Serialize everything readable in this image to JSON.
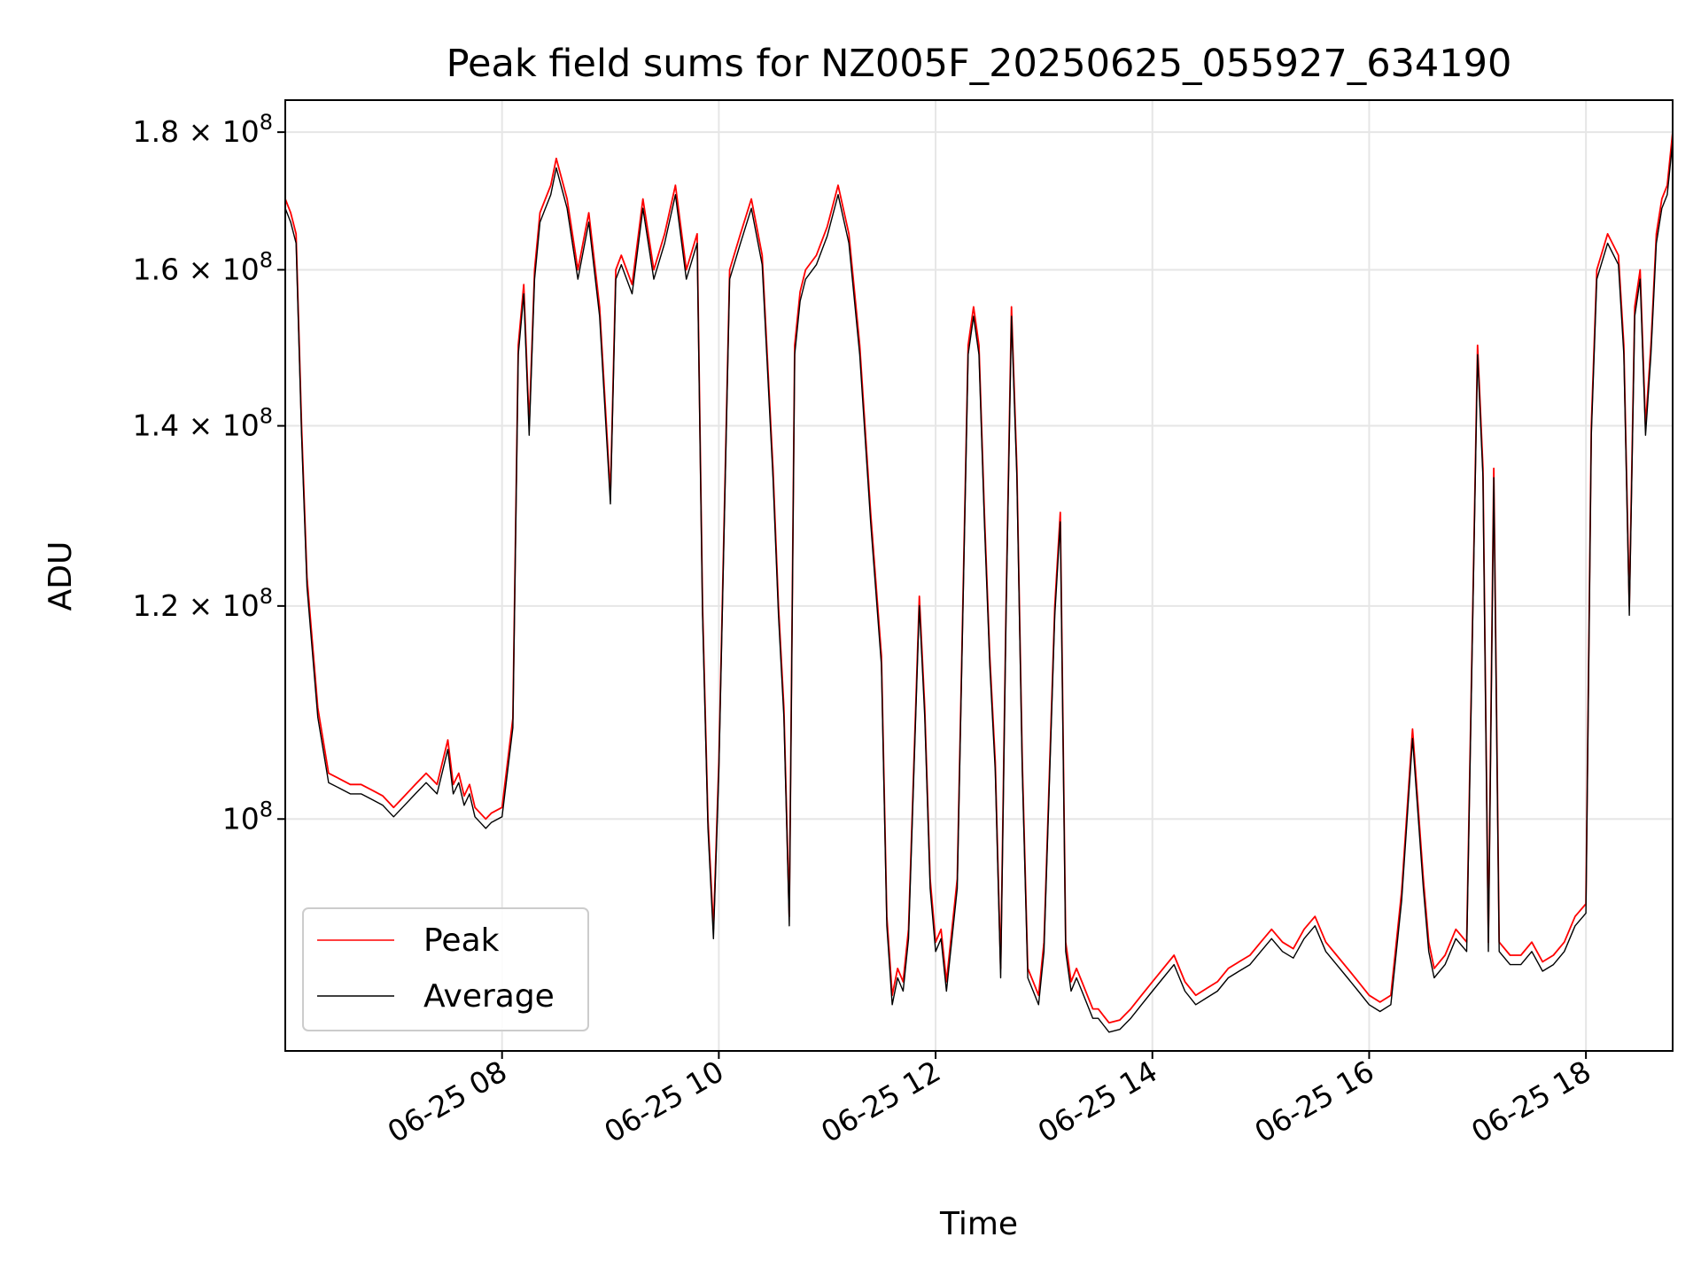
{
  "chart_data": {
    "type": "line",
    "title": "Peak field sums for NZ005F_20250625_055927_634190",
    "xlabel": "Time",
    "ylabel": "ADU",
    "y_scale": "log",
    "ylim": [
      82000000,
      185000000
    ],
    "xlim": [
      "06-25 06:00",
      "06-25 18:48"
    ],
    "grid": true,
    "legend_position": "lower left",
    "x_ticks": [
      "06-25 08",
      "06-25 10",
      "06-25 12",
      "06-25 14",
      "06-25 16",
      "06-25 18"
    ],
    "x_tick_hours": [
      8,
      10,
      12,
      14,
      16,
      18
    ],
    "y_ticks": [
      {
        "value": 100000000,
        "mantissa": "",
        "exp": "8"
      },
      {
        "value": 120000000,
        "mantissa": "1.2",
        "exp": "8"
      },
      {
        "value": 140000000,
        "mantissa": "1.4",
        "exp": "8"
      },
      {
        "value": 160000000,
        "mantissa": "1.6",
        "exp": "8"
      },
      {
        "value": 180000000,
        "mantissa": "1.8",
        "exp": "8"
      }
    ],
    "series": [
      {
        "name": "Peak",
        "color": "#ff0000"
      },
      {
        "name": "Average",
        "color": "#000000"
      }
    ],
    "x_hours": [
      6.0,
      6.05,
      6.1,
      6.15,
      6.2,
      6.3,
      6.4,
      6.5,
      6.6,
      6.7,
      6.8,
      6.9,
      7.0,
      7.1,
      7.2,
      7.3,
      7.4,
      7.5,
      7.55,
      7.6,
      7.65,
      7.7,
      7.75,
      7.8,
      7.85,
      7.9,
      8.0,
      8.1,
      8.15,
      8.2,
      8.25,
      8.3,
      8.35,
      8.4,
      8.45,
      8.5,
      8.6,
      8.7,
      8.8,
      8.9,
      9.0,
      9.05,
      9.1,
      9.2,
      9.3,
      9.4,
      9.5,
      9.6,
      9.7,
      9.8,
      9.85,
      9.9,
      9.95,
      10.0,
      10.1,
      10.2,
      10.3,
      10.4,
      10.5,
      10.55,
      10.6,
      10.65,
      10.7,
      10.75,
      10.8,
      10.9,
      11.0,
      11.1,
      11.2,
      11.3,
      11.4,
      11.5,
      11.55,
      11.6,
      11.65,
      11.7,
      11.75,
      11.8,
      11.85,
      11.9,
      11.95,
      12.0,
      12.05,
      12.1,
      12.2,
      12.3,
      12.35,
      12.4,
      12.45,
      12.5,
      12.55,
      12.6,
      12.65,
      12.7,
      12.75,
      12.8,
      12.85,
      12.9,
      12.95,
      13.0,
      13.1,
      13.15,
      13.2,
      13.25,
      13.3,
      13.35,
      13.4,
      13.45,
      13.5,
      13.55,
      13.6,
      13.7,
      13.8,
      13.9,
      14.0,
      14.1,
      14.2,
      14.3,
      14.4,
      14.5,
      14.6,
      14.7,
      14.8,
      14.9,
      15.0,
      15.1,
      15.2,
      15.3,
      15.4,
      15.5,
      15.6,
      15.7,
      15.8,
      15.9,
      16.0,
      16.1,
      16.2,
      16.3,
      16.4,
      16.5,
      16.55,
      16.6,
      16.7,
      16.8,
      16.9,
      17.0,
      17.05,
      17.1,
      17.15,
      17.2,
      17.3,
      17.4,
      17.5,
      17.6,
      17.7,
      17.8,
      17.9,
      18.0,
      18.05,
      18.1,
      18.2,
      18.3,
      18.35,
      18.4,
      18.45,
      18.5,
      18.55,
      18.6,
      18.65,
      18.7,
      18.75,
      18.8
    ],
    "peak": [
      170000000,
      168000000,
      165000000,
      140000000,
      123000000,
      110000000,
      104000000,
      103500000,
      103000000,
      103000000,
      102500000,
      102000000,
      101000000,
      102000000,
      103000000,
      104000000,
      103000000,
      107000000,
      103000000,
      104000000,
      102000000,
      103000000,
      101000000,
      100500000,
      100000000,
      100500000,
      101000000,
      109000000,
      150000000,
      158000000,
      140000000,
      160000000,
      168000000,
      170000000,
      172000000,
      176000000,
      170000000,
      160000000,
      168000000,
      155000000,
      132000000,
      160000000,
      162000000,
      158000000,
      170000000,
      160000000,
      165000000,
      172000000,
      160000000,
      165000000,
      120000000,
      100000000,
      91000000,
      105000000,
      160000000,
      165000000,
      170000000,
      162000000,
      135000000,
      120000000,
      110000000,
      92000000,
      150000000,
      157000000,
      160000000,
      162000000,
      166000000,
      172000000,
      165000000,
      150000000,
      130000000,
      115000000,
      92000000,
      86000000,
      88000000,
      87000000,
      91000000,
      105000000,
      121000000,
      110000000,
      95000000,
      90000000,
      91000000,
      87000000,
      95000000,
      150000000,
      155000000,
      150000000,
      130000000,
      115000000,
      105000000,
      88000000,
      120000000,
      155000000,
      135000000,
      105000000,
      88000000,
      87000000,
      86000000,
      90000000,
      120000000,
      130000000,
      90000000,
      87000000,
      88000000,
      87000000,
      86000000,
      85000000,
      85000000,
      84500000,
      84000000,
      84200000,
      85000000,
      86000000,
      87000000,
      88000000,
      89000000,
      87000000,
      86000000,
      86500000,
      87000000,
      88000000,
      88500000,
      89000000,
      90000000,
      91000000,
      90000000,
      89500000,
      91000000,
      92000000,
      90000000,
      89000000,
      88000000,
      87000000,
      86000000,
      85500000,
      86000000,
      94000000,
      108000000,
      95000000,
      90000000,
      88000000,
      89000000,
      91000000,
      90000000,
      150000000,
      135000000,
      90000000,
      135000000,
      90000000,
      89000000,
      89000000,
      90000000,
      88500000,
      89000000,
      90000000,
      92000000,
      93000000,
      140000000,
      160000000,
      165000000,
      162000000,
      150000000,
      120000000,
      155000000,
      160000000,
      140000000,
      150000000,
      165000000,
      170000000,
      172000000,
      180000000,
      176000000
    ]
  }
}
